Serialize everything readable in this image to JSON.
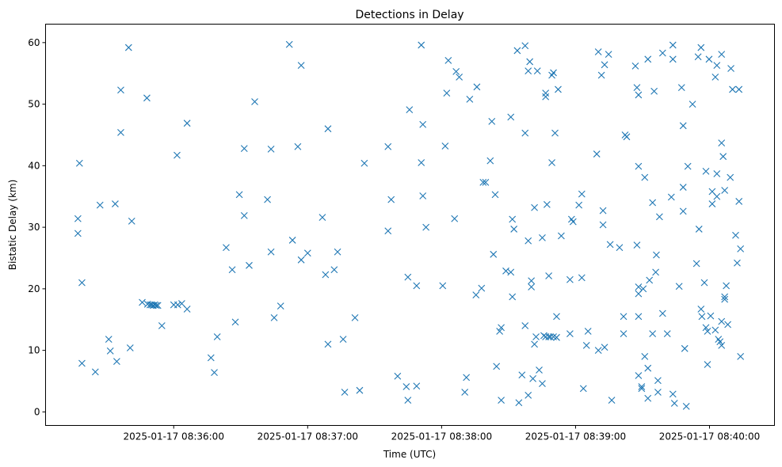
{
  "chart_data": {
    "type": "scatter",
    "title": "Detections in Delay",
    "xlabel": "Time (UTC)",
    "ylabel": "Bistatic Delay (km)",
    "x_units": "seconds after 2025-01-17 08:35:00",
    "xlim": [
      2.6,
      329.1
    ],
    "ylim": [
      -2.2,
      63.0
    ],
    "xticks": [
      {
        "value": 60,
        "label": "2025-01-17 08:36:00"
      },
      {
        "value": 120,
        "label": "2025-01-17 08:37:00"
      },
      {
        "value": 180,
        "label": "2025-01-17 08:38:00"
      },
      {
        "value": 240,
        "label": "2025-01-17 08:39:00"
      },
      {
        "value": 300,
        "label": "2025-01-17 08:40:00"
      }
    ],
    "yticks": [
      {
        "value": 0,
        "label": "0"
      },
      {
        "value": 10,
        "label": "10"
      },
      {
        "value": 20,
        "label": "20"
      },
      {
        "value": 30,
        "label": "30"
      },
      {
        "value": 40,
        "label": "40"
      },
      {
        "value": 50,
        "label": "50"
      },
      {
        "value": 60,
        "label": "60"
      }
    ],
    "grid": false,
    "marker": "x",
    "color": "#1f77b4",
    "points": [
      [
        17.1,
        31.4
      ],
      [
        17.1,
        29.0
      ],
      [
        17.8,
        40.4
      ],
      [
        18.9,
        21.0
      ],
      [
        18.9,
        7.9
      ],
      [
        24.9,
        6.5
      ],
      [
        27.0,
        33.6
      ],
      [
        30.9,
        11.8
      ],
      [
        31.6,
        9.9
      ],
      [
        33.8,
        33.8
      ],
      [
        34.5,
        8.2
      ],
      [
        36.3,
        52.3
      ],
      [
        36.3,
        45.4
      ],
      [
        39.8,
        59.2
      ],
      [
        40.5,
        10.4
      ],
      [
        41.2,
        31.0
      ],
      [
        45.9,
        17.8
      ],
      [
        48.0,
        51.0
      ],
      [
        48.3,
        17.5
      ],
      [
        49.4,
        17.4
      ],
      [
        50.1,
        17.4
      ],
      [
        50.8,
        17.3
      ],
      [
        51.5,
        17.4
      ],
      [
        52.2,
        17.3
      ],
      [
        52.9,
        17.3
      ],
      [
        54.7,
        14.0
      ],
      [
        60.0,
        17.4
      ],
      [
        61.5,
        41.7
      ],
      [
        61.8,
        17.4
      ],
      [
        63.6,
        17.6
      ],
      [
        66.0,
        16.7
      ],
      [
        66.0,
        46.9
      ],
      [
        76.7,
        8.8
      ],
      [
        78.2,
        6.4
      ],
      [
        79.5,
        12.2
      ],
      [
        83.5,
        26.7
      ],
      [
        86.2,
        23.1
      ],
      [
        87.6,
        14.6
      ],
      [
        89.4,
        35.3
      ],
      [
        91.6,
        31.9
      ],
      [
        91.6,
        42.8
      ],
      [
        93.8,
        23.8
      ],
      [
        96.3,
        50.4
      ],
      [
        102.0,
        34.5
      ],
      [
        103.6,
        42.7
      ],
      [
        103.6,
        26.0
      ],
      [
        105.0,
        15.3
      ],
      [
        107.9,
        17.2
      ],
      [
        111.8,
        59.7
      ],
      [
        113.2,
        27.9
      ],
      [
        115.6,
        43.1
      ],
      [
        117.1,
        56.3
      ],
      [
        117.1,
        24.7
      ],
      [
        120.0,
        25.8
      ],
      [
        126.6,
        31.6
      ],
      [
        128.0,
        22.3
      ],
      [
        129.1,
        46.0
      ],
      [
        129.1,
        11.0
      ],
      [
        131.9,
        23.1
      ],
      [
        133.4,
        26.0
      ],
      [
        135.9,
        11.8
      ],
      [
        136.6,
        3.2
      ],
      [
        141.2,
        15.3
      ],
      [
        143.3,
        3.5
      ],
      [
        145.4,
        40.4
      ],
      [
        156.0,
        43.1
      ],
      [
        156.0,
        29.4
      ],
      [
        157.4,
        34.5
      ],
      [
        160.3,
        5.8
      ],
      [
        164.2,
        4.1
      ],
      [
        164.9,
        1.9
      ],
      [
        164.9,
        21.9
      ],
      [
        165.6,
        49.1
      ],
      [
        168.8,
        4.2
      ],
      [
        168.8,
        20.5
      ],
      [
        170.9,
        59.6
      ],
      [
        170.9,
        40.5
      ],
      [
        171.6,
        46.7
      ],
      [
        171.6,
        35.1
      ],
      [
        173.0,
        30.0
      ],
      [
        180.5,
        20.5
      ],
      [
        181.6,
        43.2
      ],
      [
        182.3,
        51.8
      ],
      [
        183.0,
        57.1
      ],
      [
        185.8,
        31.4
      ],
      [
        186.5,
        55.3
      ],
      [
        187.9,
        54.4
      ],
      [
        190.4,
        3.2
      ],
      [
        191.1,
        5.6
      ],
      [
        192.6,
        50.8
      ],
      [
        195.4,
        19.0
      ],
      [
        195.8,
        52.8
      ],
      [
        197.9,
        20.1
      ],
      [
        198.6,
        37.3
      ],
      [
        199.7,
        37.3
      ],
      [
        201.8,
        40.8
      ],
      [
        202.5,
        47.2
      ],
      [
        203.2,
        25.6
      ],
      [
        204.0,
        35.3
      ],
      [
        204.6,
        7.4
      ],
      [
        206.0,
        13.1
      ],
      [
        206.7,
        13.7
      ],
      [
        206.7,
        1.9
      ],
      [
        208.8,
        22.9
      ],
      [
        211.0,
        47.9
      ],
      [
        211.0,
        22.7
      ],
      [
        211.7,
        18.7
      ],
      [
        211.7,
        31.3
      ],
      [
        212.4,
        29.7
      ],
      [
        213.9,
        58.7
      ],
      [
        214.6,
        1.5
      ],
      [
        216.0,
        6.0
      ],
      [
        217.4,
        59.5
      ],
      [
        217.4,
        45.3
      ],
      [
        217.4,
        14.0
      ],
      [
        218.8,
        55.4
      ],
      [
        218.8,
        2.7
      ],
      [
        219.5,
        56.9
      ],
      [
        218.8,
        27.8
      ],
      [
        220.2,
        21.3
      ],
      [
        220.2,
        20.3
      ],
      [
        220.9,
        5.4
      ],
      [
        221.6,
        11.0
      ],
      [
        222.3,
        12.2
      ],
      [
        221.6,
        33.2
      ],
      [
        222.9,
        55.4
      ],
      [
        223.7,
        6.8
      ],
      [
        225.1,
        4.6
      ],
      [
        225.1,
        28.3
      ],
      [
        225.8,
        12.4
      ],
      [
        227.2,
        33.7
      ],
      [
        226.6,
        12.2
      ],
      [
        226.6,
        51.8
      ],
      [
        226.6,
        51.2
      ],
      [
        228.0,
        22.1
      ],
      [
        228.0,
        12.2
      ],
      [
        228.7,
        12.2
      ],
      [
        229.4,
        40.5
      ],
      [
        229.4,
        54.7
      ],
      [
        230.1,
        55.1
      ],
      [
        230.1,
        12.2
      ],
      [
        230.8,
        45.3
      ],
      [
        231.5,
        12.1
      ],
      [
        231.5,
        15.5
      ],
      [
        232.2,
        52.4
      ],
      [
        233.6,
        28.6
      ],
      [
        237.5,
        21.5
      ],
      [
        238.2,
        31.3
      ],
      [
        238.9,
        30.9
      ],
      [
        237.5,
        12.7
      ],
      [
        241.5,
        33.6
      ],
      [
        242.8,
        35.4
      ],
      [
        242.8,
        21.8
      ],
      [
        243.5,
        3.8
      ],
      [
        244.9,
        10.8
      ],
      [
        245.6,
        13.1
      ],
      [
        249.5,
        41.9
      ],
      [
        250.2,
        58.5
      ],
      [
        250.2,
        10.0
      ],
      [
        251.6,
        54.7
      ],
      [
        252.3,
        32.7
      ],
      [
        252.3,
        30.4
      ],
      [
        253.0,
        56.4
      ],
      [
        253.0,
        10.5
      ],
      [
        254.8,
        58.1
      ],
      [
        255.5,
        27.2
      ],
      [
        256.2,
        1.9
      ],
      [
        259.7,
        26.7
      ],
      [
        261.5,
        12.7
      ],
      [
        261.5,
        15.5
      ],
      [
        262.2,
        45.0
      ],
      [
        262.9,
        44.7
      ],
      [
        266.8,
        56.2
      ],
      [
        267.5,
        52.7
      ],
      [
        267.5,
        27.1
      ],
      [
        268.2,
        51.5
      ],
      [
        268.2,
        39.9
      ],
      [
        268.2,
        20.3
      ],
      [
        268.2,
        19.2
      ],
      [
        268.2,
        15.5
      ],
      [
        268.2,
        5.9
      ],
      [
        269.6,
        4.1
      ],
      [
        269.6,
        3.8
      ],
      [
        270.3,
        20.0
      ],
      [
        271.0,
        38.1
      ],
      [
        271.0,
        9.0
      ],
      [
        272.4,
        57.3
      ],
      [
        272.4,
        7.1
      ],
      [
        272.4,
        2.2
      ],
      [
        273.1,
        21.4
      ],
      [
        274.5,
        34.0
      ],
      [
        274.5,
        12.7
      ],
      [
        275.2,
        52.1
      ],
      [
        275.9,
        22.7
      ],
      [
        276.2,
        25.5
      ],
      [
        276.9,
        5.1
      ],
      [
        276.9,
        3.2
      ],
      [
        277.6,
        31.7
      ],
      [
        279.0,
        58.3
      ],
      [
        279.0,
        16.0
      ],
      [
        281.1,
        12.7
      ],
      [
        282.9,
        34.9
      ],
      [
        283.6,
        59.6
      ],
      [
        283.6,
        57.3
      ],
      [
        283.6,
        2.9
      ],
      [
        284.3,
        1.4
      ],
      [
        286.4,
        20.4
      ],
      [
        287.5,
        52.7
      ],
      [
        288.2,
        46.5
      ],
      [
        288.2,
        36.5
      ],
      [
        288.2,
        32.6
      ],
      [
        288.9,
        10.3
      ],
      [
        289.6,
        0.9
      ],
      [
        290.3,
        39.9
      ],
      [
        292.4,
        50.0
      ],
      [
        294.2,
        24.1
      ],
      [
        294.9,
        57.7
      ],
      [
        295.3,
        29.7
      ],
      [
        296.2,
        59.2
      ],
      [
        296.2,
        16.7
      ],
      [
        296.6,
        15.5
      ],
      [
        297.7,
        21.0
      ],
      [
        298.4,
        39.1
      ],
      [
        298.4,
        13.7
      ],
      [
        299.1,
        13.1
      ],
      [
        299.1,
        7.7
      ],
      [
        299.8,
        57.3
      ],
      [
        300.5,
        15.6
      ],
      [
        301.2,
        33.8
      ],
      [
        301.2,
        35.8
      ],
      [
        302.6,
        54.4
      ],
      [
        302.6,
        13.3
      ],
      [
        303.3,
        56.3
      ],
      [
        303.3,
        35.0
      ],
      [
        304.0,
        11.8
      ],
      [
        303.3,
        38.7
      ],
      [
        304.7,
        11.4
      ],
      [
        305.4,
        43.7
      ],
      [
        305.4,
        14.7
      ],
      [
        305.4,
        10.8
      ],
      [
        305.4,
        58.1
      ],
      [
        306.1,
        41.5
      ],
      [
        306.8,
        36.0
      ],
      [
        306.8,
        18.7
      ],
      [
        306.8,
        18.3
      ],
      [
        307.5,
        20.5
      ],
      [
        308.2,
        14.2
      ],
      [
        309.3,
        38.1
      ],
      [
        309.6,
        55.8
      ],
      [
        310.3,
        52.4
      ],
      [
        311.7,
        28.7
      ],
      [
        312.4,
        24.2
      ],
      [
        313.2,
        52.4
      ],
      [
        313.2,
        34.2
      ],
      [
        313.9,
        26.5
      ],
      [
        313.9,
        9.0
      ]
    ]
  }
}
